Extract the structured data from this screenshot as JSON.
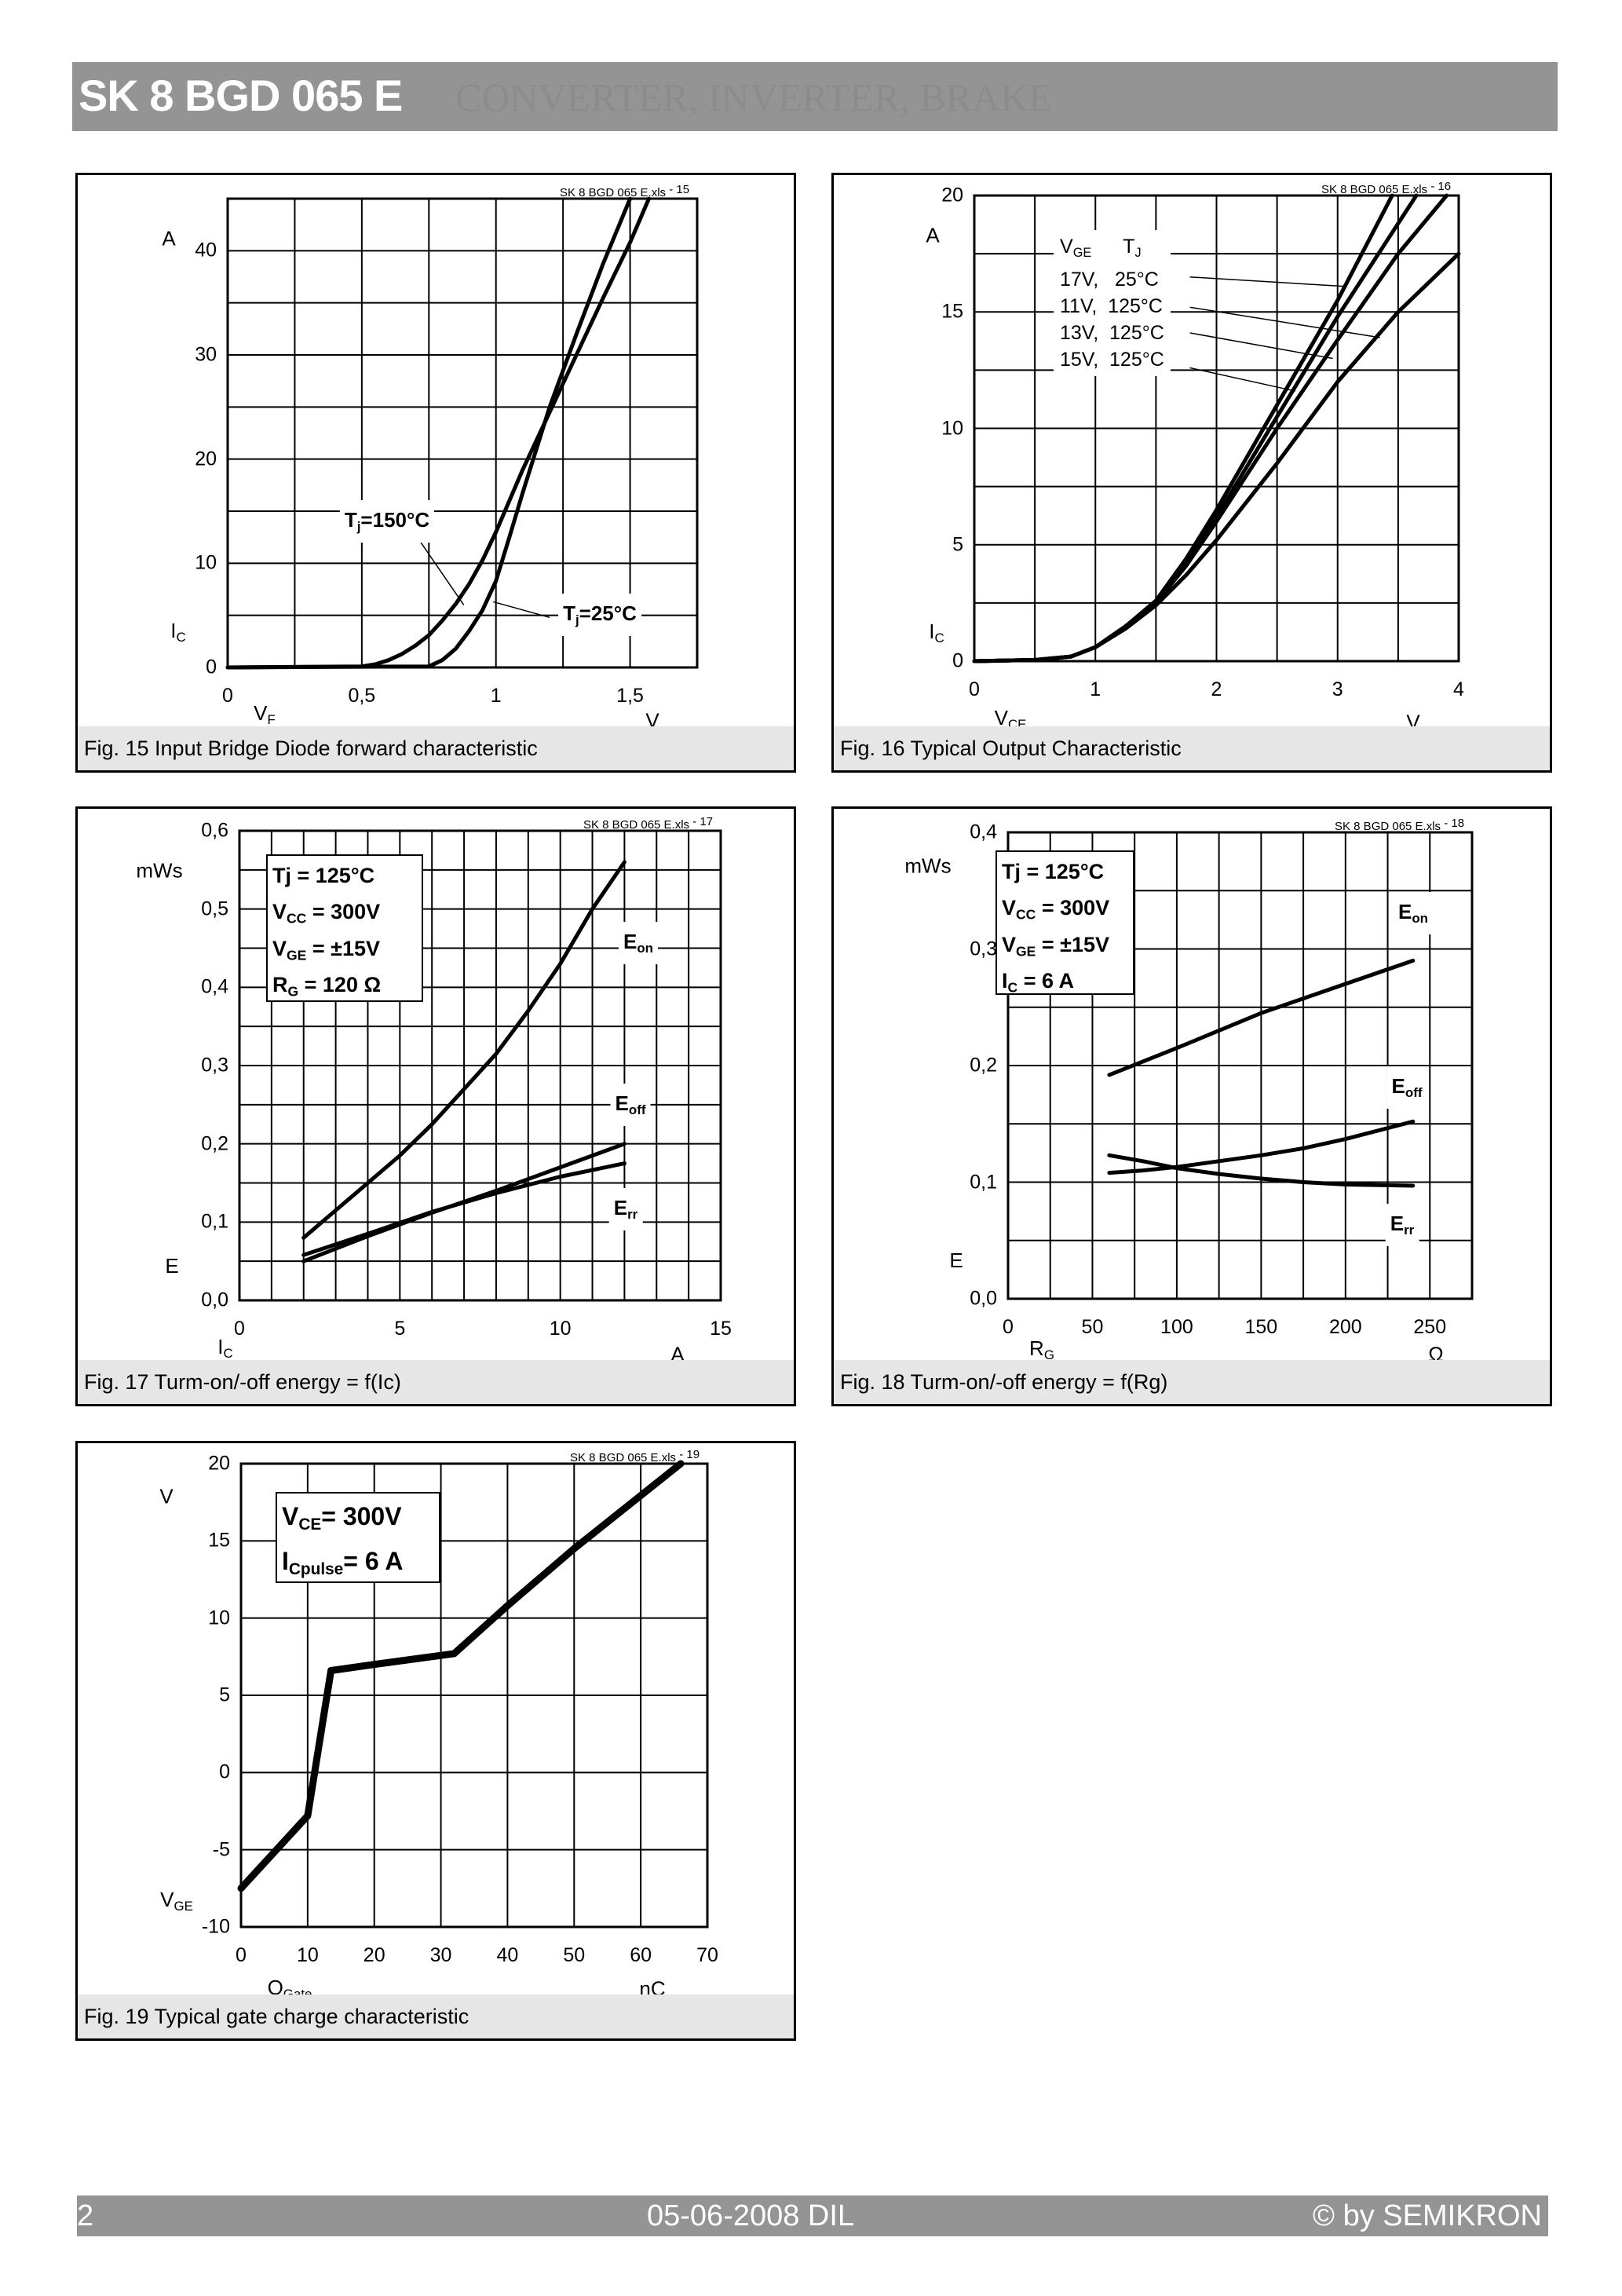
{
  "header": {
    "title": "SK 8 BGD 065 E",
    "subtitle": "CONVERTER, INVERTER, BRAKE"
  },
  "footer": {
    "page": "2",
    "date": "05-06-2008  DIL",
    "copyright": "© by SEMIKRON"
  },
  "chart_data": [
    {
      "type": "line",
      "caption": "Fig. 15 Input Bridge Diode forward characteristic",
      "file_ref": "SK 8 BGD 065 E.xls",
      "file_ref_num": "- 15",
      "xlabel": {
        "symbol": "V",
        "sub": "F",
        "unit": "V"
      },
      "ylabel": {
        "symbol": "I",
        "sub": "C",
        "unit": "A"
      },
      "xlim": [
        0,
        1.75
      ],
      "ylim": [
        0,
        45
      ],
      "grid": true,
      "grid_x_step": 0.25,
      "grid_y_step": 5,
      "xticks": [
        0,
        0.5,
        1,
        1.5
      ],
      "xtick_labels": [
        "0",
        "0,5",
        "1",
        "1,5"
      ],
      "yticks": [
        0,
        10,
        20,
        30,
        40
      ],
      "ytick_labels": [
        "0",
        "10",
        "20",
        "30",
        "40"
      ],
      "series": [
        {
          "name": "Tj=150°C",
          "label_main": "T",
          "label_sub": "j",
          "label_rest": "=150°C",
          "x": [
            0,
            0.5,
            0.55,
            0.6,
            0.65,
            0.7,
            0.75,
            0.8,
            0.85,
            0.9,
            0.95,
            1.0,
            1.1,
            1.2,
            1.3,
            1.4,
            1.5,
            1.57
          ],
          "y": [
            0,
            0.1,
            0.3,
            0.7,
            1.3,
            2.1,
            3.1,
            4.5,
            6.1,
            8,
            10.3,
            13,
            19,
            24.5,
            30,
            35.5,
            40.8,
            45
          ]
        },
        {
          "name": "Tj=25°C",
          "label_main": "T",
          "label_sub": "j",
          "label_rest": "=25°C",
          "x": [
            0,
            0.75,
            0.8,
            0.85,
            0.9,
            0.95,
            1.0,
            1.05,
            1.1,
            1.2,
            1.3,
            1.4,
            1.5
          ],
          "y": [
            0,
            0.1,
            0.7,
            1.8,
            3.5,
            5.5,
            8.3,
            12.5,
            16.8,
            25,
            32,
            38.8,
            45
          ]
        }
      ]
    },
    {
      "type": "line",
      "caption": "Fig. 16 Typical Output Characteristic",
      "file_ref": "SK 8 BGD 065 E.xls",
      "file_ref_num": "- 16",
      "xlabel": {
        "symbol": "V",
        "sub": "CE",
        "unit": "V"
      },
      "ylabel": {
        "symbol": "I",
        "sub": "C",
        "unit": "A"
      },
      "xlim": [
        0,
        4
      ],
      "ylim": [
        0,
        20
      ],
      "grid": true,
      "grid_x_step": 0.5,
      "grid_y_step": 2.5,
      "xticks": [
        0,
        1,
        2,
        3,
        4
      ],
      "xtick_labels": [
        "0",
        "1",
        "2",
        "3",
        "4"
      ],
      "yticks": [
        0,
        5,
        10,
        15,
        20
      ],
      "ytick_labels": [
        "0",
        "5",
        "10",
        "15",
        "20"
      ],
      "legend_header": {
        "vge": "V",
        "vge_sub": "GE",
        "tj": "T",
        "tj_sub": "J"
      },
      "series": [
        {
          "name": "17V,   25°C",
          "x": [
            0,
            0.5,
            0.8,
            1,
            1.25,
            1.5,
            1.75,
            2,
            2.5,
            3,
            3.45
          ],
          "y": [
            0,
            0.05,
            0.2,
            0.6,
            1.5,
            2.6,
            4.4,
            6.5,
            11,
            15.5,
            20
          ]
        },
        {
          "name": "11V,  125°C",
          "x": [
            0,
            0.5,
            0.8,
            1,
            1.25,
            1.5,
            1.75,
            2,
            2.5,
            3,
            3.65
          ],
          "y": [
            0,
            0.05,
            0.2,
            0.6,
            1.5,
            2.5,
            4.2,
            6.2,
            10.5,
            14.8,
            20
          ]
        },
        {
          "name": "13V,  125°C",
          "x": [
            0,
            0.5,
            0.8,
            1,
            1.25,
            1.5,
            1.75,
            2,
            2.5,
            3,
            3.5,
            3.9
          ],
          "y": [
            0,
            0.05,
            0.2,
            0.6,
            1.5,
            2.5,
            4.1,
            6,
            10,
            13.8,
            17.5,
            20
          ]
        },
        {
          "name": "15V,  125°C",
          "x": [
            0,
            0.5,
            0.8,
            1,
            1.25,
            1.5,
            1.75,
            2,
            2.5,
            3,
            3.5,
            4
          ],
          "y": [
            0,
            0.05,
            0.2,
            0.6,
            1.4,
            2.4,
            3.7,
            5.2,
            8.5,
            12,
            15,
            17.5
          ]
        }
      ]
    },
    {
      "type": "line",
      "caption": "Fig. 17 Turm-on/-off energy = f(Ic)",
      "file_ref": "SK 8 BGD 065 E.xls",
      "file_ref_num": "- 17",
      "xlabel": {
        "symbol": "I",
        "sub": "C",
        "unit": "A"
      },
      "ylabel": {
        "symbol": "E",
        "sub": "",
        "unit": "mWs"
      },
      "xlim": [
        0,
        15
      ],
      "ylim": [
        0,
        0.6
      ],
      "grid": true,
      "grid_x_step": 1,
      "grid_y_step": 0.05,
      "xticks": [
        0,
        5,
        10,
        15
      ],
      "xtick_labels": [
        "0",
        "5",
        "10",
        "15"
      ],
      "yticks": [
        0,
        0.1,
        0.2,
        0.3,
        0.4,
        0.5,
        0.6
      ],
      "ytick_labels": [
        "0,0",
        "0,1",
        "0,2",
        "0,3",
        "0,4",
        "0,5",
        "0,6"
      ],
      "conditions": [
        {
          "main": "Tj = 125°C",
          "sub": "",
          "rest": ""
        },
        {
          "main": "V",
          "sub": "CC",
          "rest": " = 300V"
        },
        {
          "main": "V",
          "sub": "GE",
          "rest": " = ±15V"
        },
        {
          "main": "R",
          "sub": "G",
          "rest": " = 120 Ω"
        }
      ],
      "series": [
        {
          "name": "Eon",
          "label_main": "E",
          "label_sub": "on",
          "x": [
            2,
            3,
            4,
            5,
            6,
            7,
            8,
            9,
            10,
            11,
            12
          ],
          "y": [
            0.08,
            0.115,
            0.15,
            0.185,
            0.225,
            0.27,
            0.315,
            0.37,
            0.43,
            0.5,
            0.56
          ]
        },
        {
          "name": "Eoff",
          "label_main": "E",
          "label_sub": "off",
          "x": [
            2,
            4,
            6,
            8,
            10,
            12
          ],
          "y": [
            0.05,
            0.082,
            0.112,
            0.14,
            0.17,
            0.2
          ]
        },
        {
          "name": "Err",
          "label_main": "E",
          "label_sub": "rr",
          "x": [
            2,
            4,
            6,
            8,
            10,
            12
          ],
          "y": [
            0.058,
            0.085,
            0.113,
            0.137,
            0.158,
            0.175
          ]
        }
      ]
    },
    {
      "type": "line",
      "caption": "Fig. 18 Turm-on/-off energy = f(Rg)",
      "file_ref": "SK 8 BGD 065 E.xls",
      "file_ref_num": "- 18",
      "xlabel": {
        "symbol": "R",
        "sub": "G",
        "unit": "Ω"
      },
      "ylabel": {
        "symbol": "E",
        "sub": "",
        "unit": "mWs"
      },
      "xlim": [
        0,
        275
      ],
      "ylim": [
        0,
        0.4
      ],
      "grid": true,
      "grid_x_step": 25,
      "grid_y_step": 0.05,
      "xticks": [
        0,
        50,
        100,
        150,
        200,
        250
      ],
      "xtick_labels": [
        "0",
        "50",
        "100",
        "150",
        "200",
        "250"
      ],
      "yticks": [
        0,
        0.1,
        0.2,
        0.3,
        0.4
      ],
      "ytick_labels": [
        "0,0",
        "0,1",
        "0,2",
        "0,3",
        "0,4"
      ],
      "conditions": [
        {
          "main": "Tj = 125°C",
          "sub": "",
          "rest": ""
        },
        {
          "main": "V",
          "sub": "CC",
          "rest": " = 300V"
        },
        {
          "main": "V",
          "sub": "GE",
          "rest": " = ±15V"
        },
        {
          "main": "I",
          "sub": "C",
          "rest": " = 6 A"
        }
      ],
      "series": [
        {
          "name": "Eon",
          "label_main": "E",
          "label_sub": "on",
          "x": [
            60,
            100,
            150,
            200,
            240
          ],
          "y": [
            0.192,
            0.215,
            0.245,
            0.27,
            0.29
          ]
        },
        {
          "name": "Eoff",
          "label_main": "E",
          "label_sub": "off",
          "x": [
            60,
            80,
            100,
            125,
            150,
            175,
            200,
            240
          ],
          "y": [
            0.108,
            0.11,
            0.113,
            0.118,
            0.123,
            0.129,
            0.137,
            0.152
          ]
        },
        {
          "name": "Err",
          "label_main": "E",
          "label_sub": "rr",
          "x": [
            60,
            80,
            100,
            125,
            150,
            175,
            200,
            240
          ],
          "y": [
            0.123,
            0.118,
            0.112,
            0.107,
            0.103,
            0.1,
            0.098,
            0.097
          ]
        }
      ]
    },
    {
      "type": "line",
      "caption": "Fig. 19 Typical gate charge characteristic",
      "file_ref": "SK 8 BGD 065 E.xls",
      "file_ref_num": "- 19",
      "xlabel": {
        "symbol": "Q",
        "sub": "Gate",
        "unit": "nC"
      },
      "ylabel": {
        "symbol": "V",
        "sub": "GE",
        "unit": "V"
      },
      "xlim": [
        0,
        70
      ],
      "ylim": [
        -10,
        20
      ],
      "grid": true,
      "grid_x_step": 10,
      "grid_y_step": 5,
      "xticks": [
        0,
        10,
        20,
        30,
        40,
        50,
        60,
        70
      ],
      "xtick_labels": [
        "0",
        "10",
        "20",
        "30",
        "40",
        "50",
        "60",
        "70"
      ],
      "yticks": [
        -10,
        -5,
        0,
        5,
        10,
        15,
        20
      ],
      "ytick_labels": [
        "-10",
        "-5",
        "0",
        "5",
        "10",
        "15",
        "20"
      ],
      "conditions": [
        {
          "main": "V",
          "sub": "CE",
          "rest": "= 300V"
        },
        {
          "main": "I",
          "sub": "Cpulse",
          "rest": "= 6 A"
        }
      ],
      "series": [
        {
          "x": [
            0,
            10,
            13.5,
            20,
            32,
            40,
            50,
            66
          ],
          "y": [
            -7.5,
            -2.8,
            6.6,
            7,
            7.7,
            10.8,
            14.5,
            20
          ]
        }
      ]
    }
  ]
}
